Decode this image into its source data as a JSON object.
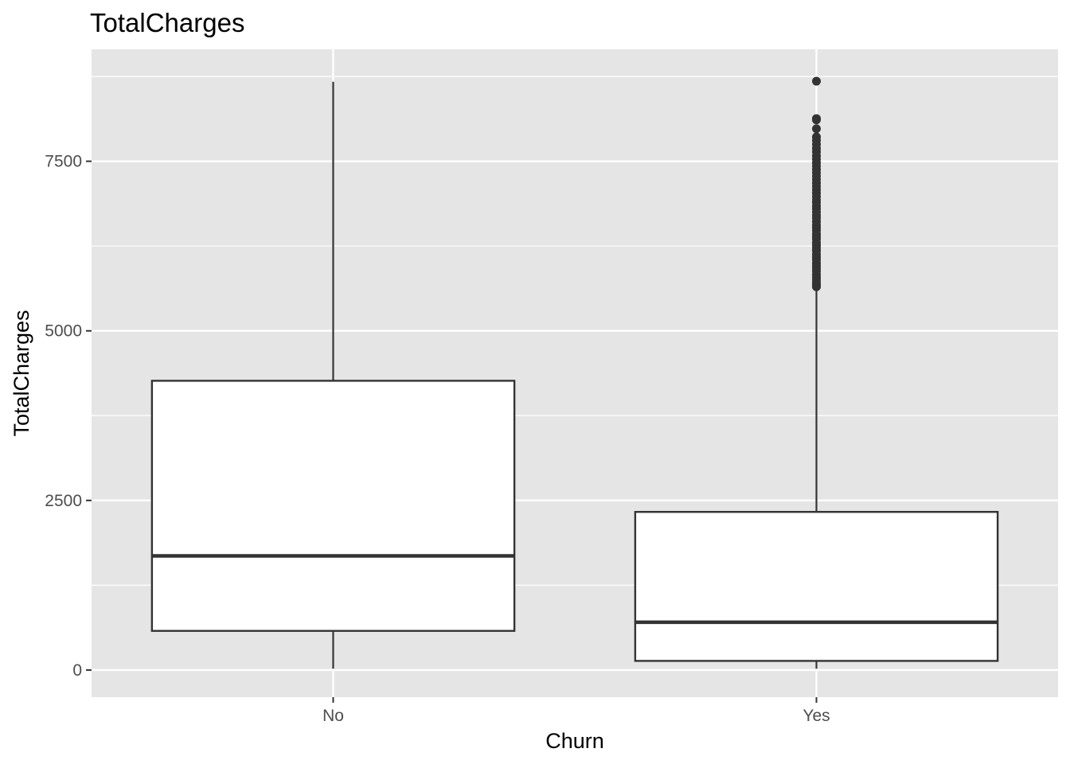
{
  "chart_data": {
    "type": "boxplot",
    "title": "TotalCharges",
    "xlabel": "Churn",
    "ylabel": "TotalCharges",
    "ylim": [
      -400,
      9150
    ],
    "y_ticks": [
      0,
      2500,
      5000,
      7500
    ],
    "y_tick_labels": [
      "0",
      "2500",
      "5000",
      "7500"
    ],
    "grid": true,
    "categories": [
      "No",
      "Yes"
    ],
    "boxes": [
      {
        "category": "No",
        "min": 18.8,
        "q1": 577,
        "median": 1683,
        "q3": 4264,
        "max": 8672,
        "outliers": []
      },
      {
        "category": "Yes",
        "min": 18.9,
        "q1": 134.5,
        "median": 704,
        "q3": 2331,
        "max": 5625,
        "outliers": [
          5650,
          5680,
          5710,
          5750,
          5790,
          5830,
          5880,
          5920,
          5960,
          6000,
          6050,
          6090,
          6130,
          6180,
          6220,
          6260,
          6300,
          6350,
          6390,
          6430,
          6480,
          6520,
          6560,
          6610,
          6660,
          6700,
          6750,
          6800,
          6840,
          6890,
          6930,
          6980,
          7030,
          7080,
          7130,
          7180,
          7230,
          7280,
          7330,
          7380,
          7430,
          7480,
          7530,
          7580,
          7640,
          7690,
          7750,
          7810,
          7860,
          7980,
          8110,
          8130,
          8680
        ]
      }
    ],
    "colors": {
      "panel": "#e5e5e5",
      "grid": "#ffffff",
      "box_fill": "#ffffff",
      "line": "#333333"
    }
  }
}
